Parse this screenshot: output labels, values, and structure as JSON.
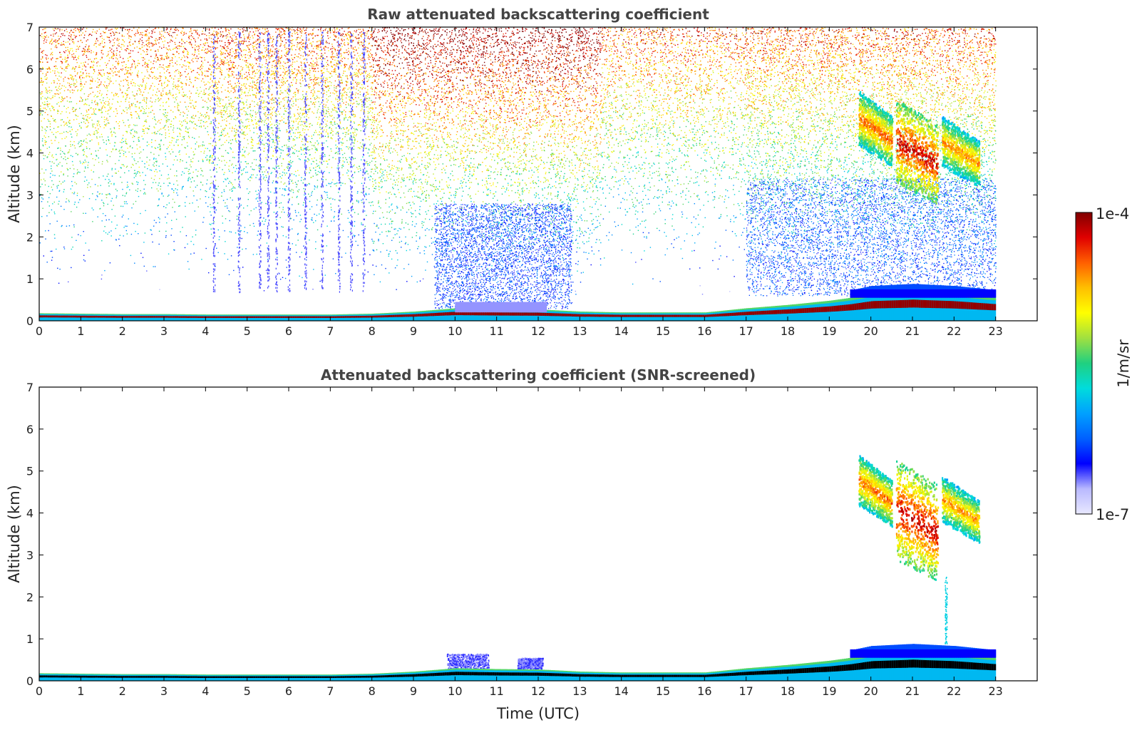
{
  "figure": {
    "xlabel": "Time (UTC)"
  },
  "colors": {
    "background": "#ffffff",
    "frame": "#000000",
    "text": "#222222",
    "title": "#444444",
    "colormap": [
      "#e8e8ff",
      "#b9b9ff",
      "#0000ff",
      "#0060ff",
      "#00a0ff",
      "#00dcdc",
      "#20d080",
      "#a0e040",
      "#ffff00",
      "#ffbf00",
      "#ff6000",
      "#e00000",
      "#800000"
    ]
  },
  "colorbar": {
    "label": "1/m/sr",
    "max_label": "1e-4",
    "min_label": "1e-7",
    "log_range": [
      -7,
      -4
    ],
    "scale": "log"
  },
  "chart_data": [
    {
      "type": "heatmap",
      "title": "Raw attenuated backscattering coefficient",
      "xlabel": "",
      "ylabel": "Altitude (km)",
      "x_ticks": [
        "0",
        "1",
        "2",
        "3",
        "4",
        "5",
        "6",
        "7",
        "8",
        "9",
        "10",
        "11",
        "12",
        "13",
        "14",
        "15",
        "16",
        "17",
        "18",
        "19",
        "20",
        "21",
        "22",
        "23"
      ],
      "y_ticks": [
        "0",
        "1",
        "2",
        "3",
        "4",
        "5",
        "6",
        "7"
      ],
      "xlim": [
        0,
        24
      ],
      "ylim": [
        0,
        7
      ],
      "data_extent_x": [
        0,
        23
      ],
      "value_unit": "1/m/sr",
      "boundary_layer": {
        "time_utc": [
          0,
          1,
          2,
          3,
          4,
          5,
          6,
          7,
          8,
          9,
          10,
          11,
          12,
          13,
          14,
          15,
          16,
          17,
          18,
          19,
          19.5,
          20,
          21,
          22,
          23
        ],
        "top_km": [
          0.18,
          0.17,
          0.16,
          0.16,
          0.15,
          0.15,
          0.15,
          0.15,
          0.17,
          0.22,
          0.3,
          0.28,
          0.27,
          0.22,
          0.2,
          0.2,
          0.2,
          0.3,
          0.38,
          0.48,
          0.55,
          0.65,
          0.7,
          0.65,
          0.55
        ]
      },
      "noise_field": {
        "description_values": "sparse noise, denser/brighter above ~4 km, strongest 8–13 UTC and near 7 km",
        "vertical_streaks_utc": [
          4.2,
          4.8,
          5.3,
          5.5,
          5.7,
          6.0,
          6.4,
          6.8,
          7.2,
          7.5,
          7.8
        ]
      },
      "clouds": [
        {
          "time_start": 19.7,
          "time_end": 20.5,
          "base_km": 3.7,
          "top_km": 5.5,
          "log_peak": -4.5
        },
        {
          "time_start": 20.6,
          "time_end": 21.6,
          "base_km": 2.8,
          "top_km": 5.3,
          "log_peak": -4.2
        },
        {
          "time_start": 21.7,
          "time_end": 22.6,
          "base_km": 3.2,
          "top_km": 4.9,
          "log_peak": -4.6
        }
      ]
    },
    {
      "type": "heatmap",
      "title": "Attenuated backscattering coefficient (SNR-screened)",
      "xlabel": "",
      "ylabel": "Altitude (km)",
      "x_ticks": [
        "0",
        "1",
        "2",
        "3",
        "4",
        "5",
        "6",
        "7",
        "8",
        "9",
        "10",
        "11",
        "12",
        "13",
        "14",
        "15",
        "16",
        "17",
        "18",
        "19",
        "20",
        "21",
        "22",
        "23"
      ],
      "y_ticks": [
        "0",
        "1",
        "2",
        "3",
        "4",
        "5",
        "6",
        "7"
      ],
      "xlim": [
        0,
        24
      ],
      "ylim": [
        0,
        7
      ],
      "data_extent_x": [
        0,
        23
      ],
      "value_unit": "1/m/sr",
      "boundary_layer": {
        "time_utc": [
          0,
          1,
          2,
          3,
          4,
          5,
          6,
          7,
          8,
          9,
          10,
          11,
          12,
          13,
          14,
          15,
          16,
          17,
          18,
          19,
          19.5,
          20,
          21,
          22,
          23
        ],
        "top_km": [
          0.18,
          0.17,
          0.16,
          0.16,
          0.15,
          0.15,
          0.15,
          0.15,
          0.17,
          0.22,
          0.3,
          0.28,
          0.27,
          0.22,
          0.2,
          0.2,
          0.2,
          0.3,
          0.38,
          0.48,
          0.55,
          0.65,
          0.7,
          0.65,
          0.55
        ]
      },
      "clouds": [
        {
          "time_start": 19.7,
          "time_end": 20.5,
          "base_km": 3.7,
          "top_km": 5.4,
          "log_peak": -4.5
        },
        {
          "time_start": 20.6,
          "time_end": 21.6,
          "base_km": 2.4,
          "top_km": 5.3,
          "log_peak": -4.2
        },
        {
          "time_start": 21.7,
          "time_end": 22.6,
          "base_km": 3.3,
          "top_km": 4.9,
          "log_peak": -4.6
        }
      ],
      "residual_layers": [
        {
          "time_start": 9.8,
          "time_end": 10.8,
          "base_km": 0.3,
          "top_km": 0.65
        },
        {
          "time_start": 11.5,
          "time_end": 12.1,
          "base_km": 0.3,
          "top_km": 0.55
        }
      ]
    }
  ]
}
